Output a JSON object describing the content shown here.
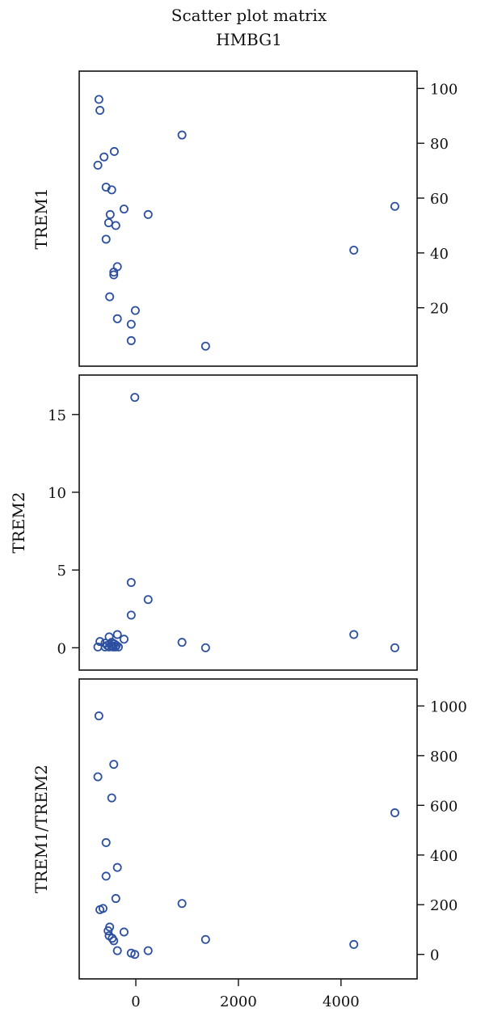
{
  "title": "Scatter plot matrix",
  "subtitle": "HMBG1",
  "chart_data": [
    {
      "type": "scatter",
      "ylabel": "TREM1",
      "ylim": [
        4,
        101
      ],
      "xlim": [
        -820,
        5200
      ],
      "yticks": [
        20,
        40,
        60,
        80,
        100
      ],
      "ytick_side": "right",
      "grid": false,
      "color": "#2c4fa0",
      "points": [
        {
          "x": -720,
          "y": 96
        },
        {
          "x": -700,
          "y": 92
        },
        {
          "x": 900,
          "y": 83
        },
        {
          "x": -420,
          "y": 77
        },
        {
          "x": -620,
          "y": 75
        },
        {
          "x": -740,
          "y": 72
        },
        {
          "x": -580,
          "y": 64
        },
        {
          "x": -470,
          "y": 63
        },
        {
          "x": -230,
          "y": 56
        },
        {
          "x": 240,
          "y": 54
        },
        {
          "x": -500,
          "y": 54
        },
        {
          "x": 5050,
          "y": 57
        },
        {
          "x": -530,
          "y": 51
        },
        {
          "x": -390,
          "y": 50
        },
        {
          "x": -580,
          "y": 45
        },
        {
          "x": 4250,
          "y": 41
        },
        {
          "x": -360,
          "y": 35
        },
        {
          "x": -430,
          "y": 33
        },
        {
          "x": -430,
          "y": 32
        },
        {
          "x": -510,
          "y": 24
        },
        {
          "x": -10,
          "y": 19
        },
        {
          "x": -360,
          "y": 16
        },
        {
          "x": -90,
          "y": 14
        },
        {
          "x": -90,
          "y": 8
        },
        {
          "x": 1360,
          "y": 6
        }
      ]
    },
    {
      "type": "scatter",
      "ylabel": "TREM2",
      "ylim": [
        -0.5,
        16.6
      ],
      "xlim": [
        -820,
        5200
      ],
      "yticks": [
        0,
        5,
        10,
        15
      ],
      "ytick_side": "left",
      "grid": false,
      "color": "#2c4fa0",
      "points": [
        {
          "x": -20,
          "y": 16.1
        },
        {
          "x": -90,
          "y": 4.2
        },
        {
          "x": 240,
          "y": 3.1
        },
        {
          "x": -90,
          "y": 2.1
        },
        {
          "x": -360,
          "y": 0.85
        },
        {
          "x": 4250,
          "y": 0.85
        },
        {
          "x": -520,
          "y": 0.7
        },
        {
          "x": -230,
          "y": 0.55
        },
        {
          "x": 900,
          "y": 0.35
        },
        {
          "x": -700,
          "y": 0.4
        },
        {
          "x": -470,
          "y": 0.35
        },
        {
          "x": -600,
          "y": 0.3
        },
        {
          "x": -560,
          "y": 0.15
        },
        {
          "x": -480,
          "y": 0.15
        },
        {
          "x": -420,
          "y": 0.25
        },
        {
          "x": -380,
          "y": 0.15
        },
        {
          "x": -740,
          "y": 0.05
        },
        {
          "x": -600,
          "y": 0.05
        },
        {
          "x": -520,
          "y": 0.05
        },
        {
          "x": -440,
          "y": 0.05
        },
        {
          "x": -400,
          "y": 0.05
        },
        {
          "x": -340,
          "y": 0.05
        },
        {
          "x": 1360,
          "y": 0.0
        },
        {
          "x": 5050,
          "y": 0.0
        },
        {
          "x": -470,
          "y": 0.1
        }
      ]
    },
    {
      "type": "scatter",
      "ylabel": "TREM1/TREM2",
      "ylim": [
        -40,
        1050
      ],
      "xlim": [
        -820,
        5200
      ],
      "yticks": [
        0,
        200,
        400,
        600,
        800,
        1000
      ],
      "ytick_side": "right",
      "xticks": [
        0,
        2000,
        4000
      ],
      "grid": false,
      "color": "#2c4fa0",
      "points": [
        {
          "x": -720,
          "y": 960
        },
        {
          "x": -430,
          "y": 765
        },
        {
          "x": -740,
          "y": 715
        },
        {
          "x": -470,
          "y": 630
        },
        {
          "x": 5050,
          "y": 570
        },
        {
          "x": -580,
          "y": 450
        },
        {
          "x": -360,
          "y": 350
        },
        {
          "x": -580,
          "y": 315
        },
        {
          "x": -390,
          "y": 225
        },
        {
          "x": 900,
          "y": 205
        },
        {
          "x": -640,
          "y": 185
        },
        {
          "x": -700,
          "y": 180
        },
        {
          "x": -510,
          "y": 110
        },
        {
          "x": -540,
          "y": 95
        },
        {
          "x": -230,
          "y": 90
        },
        {
          "x": -520,
          "y": 75
        },
        {
          "x": -460,
          "y": 65
        },
        {
          "x": -430,
          "y": 55
        },
        {
          "x": 1360,
          "y": 60
        },
        {
          "x": 4250,
          "y": 40
        },
        {
          "x": -360,
          "y": 15
        },
        {
          "x": 240,
          "y": 15
        },
        {
          "x": -90,
          "y": 5
        },
        {
          "x": -20,
          "y": 0
        }
      ]
    }
  ]
}
